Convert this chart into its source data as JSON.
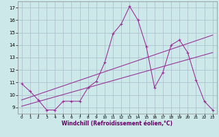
{
  "xlabel": "Windchill (Refroidissement éolien,°C)",
  "background_color": "#cce8e8",
  "grid_color": "#aabbcc",
  "line_color": "#993399",
  "xlim": [
    -0.5,
    23.5
  ],
  "ylim": [
    8.5,
    17.5
  ],
  "xticks": [
    0,
    1,
    2,
    3,
    4,
    5,
    6,
    7,
    8,
    9,
    10,
    11,
    12,
    13,
    14,
    15,
    16,
    17,
    18,
    19,
    20,
    21,
    22,
    23
  ],
  "yticks": [
    9,
    10,
    11,
    12,
    13,
    14,
    15,
    16,
    17
  ],
  "data_line": [
    [
      0,
      10.9
    ],
    [
      1,
      10.3
    ],
    [
      2,
      9.6
    ],
    [
      3,
      8.8
    ],
    [
      4,
      8.8
    ],
    [
      5,
      9.5
    ],
    [
      6,
      9.5
    ],
    [
      7,
      9.5
    ],
    [
      8,
      10.6
    ],
    [
      9,
      11.1
    ],
    [
      10,
      12.6
    ],
    [
      11,
      14.9
    ],
    [
      12,
      15.7
    ],
    [
      13,
      17.1
    ],
    [
      14,
      16.0
    ],
    [
      15,
      13.9
    ],
    [
      16,
      10.6
    ],
    [
      17,
      11.8
    ],
    [
      18,
      14.0
    ],
    [
      19,
      14.4
    ],
    [
      20,
      13.4
    ],
    [
      21,
      11.2
    ],
    [
      22,
      9.5
    ],
    [
      23,
      8.8
    ]
  ],
  "trend_line1": [
    [
      0,
      9.6
    ],
    [
      23,
      14.8
    ]
  ],
  "trend_line2": [
    [
      0,
      9.1
    ],
    [
      23,
      13.4
    ]
  ]
}
